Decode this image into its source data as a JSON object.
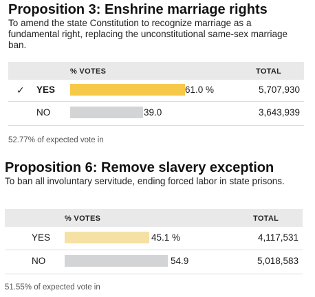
{
  "propositions": [
    {
      "title": "Proposition 3: Enshrine marriage rights",
      "description": "To amend the state Constitution to recognize marriage as a fundamental right, replacing the unconstitutional same-sex marriage ban.",
      "header": {
        "votes": "% VOTES",
        "total": "TOTAL"
      },
      "rows": [
        {
          "check": "✓",
          "label": "YES",
          "pct_text": "61.0 %",
          "pct": 61.0,
          "total": "5,707,930",
          "winner": true,
          "color": "#f7c948"
        },
        {
          "check": "",
          "label": "NO",
          "pct_text": "39.0",
          "pct": 39.0,
          "total": "3,643,939",
          "winner": false,
          "color": "#d3d4d6"
        }
      ],
      "footer": "52.77% of expected vote in"
    },
    {
      "title": "Proposition 6: Remove slavery exception",
      "description": "To ban all involuntary servitude, ending forced labor in state prisons.",
      "header": {
        "votes": "% VOTES",
        "total": "TOTAL"
      },
      "rows": [
        {
          "check": "",
          "label": "YES",
          "pct_text": "45.1 %",
          "pct": 45.1,
          "total": "4,117,531",
          "winner": false,
          "color": "#f5e1a4"
        },
        {
          "check": "",
          "label": "NO",
          "pct_text": "54.9",
          "pct": 54.9,
          "total": "5,018,583",
          "winner": false,
          "color": "#d3d4d6"
        }
      ],
      "footer": "51.55% of expected vote in"
    }
  ]
}
